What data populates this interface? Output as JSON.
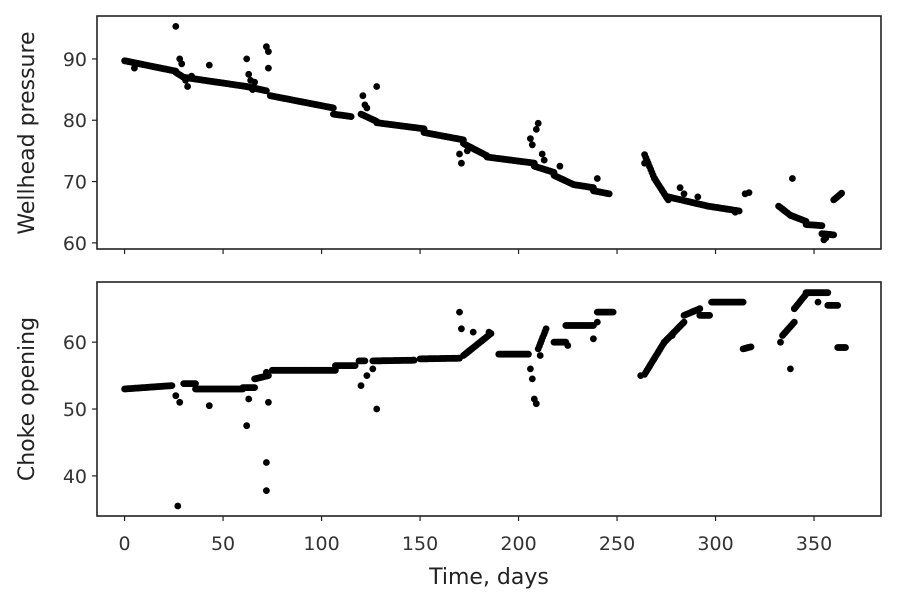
{
  "chart_data": [
    {
      "type": "scatter",
      "title": "",
      "xlabel": "",
      "ylabel": "Wellhead pressure",
      "xlim": [
        -14,
        384
      ],
      "ylim": [
        59,
        97
      ],
      "xticks": [
        0,
        50,
        100,
        150,
        200,
        250,
        300,
        350
      ],
      "xticklabels_visible": false,
      "yticks": [
        60,
        70,
        80,
        90
      ],
      "grid": false,
      "legend": "none",
      "color": "#000000",
      "segments": [
        {
          "from": [
            0,
            89.7
          ],
          "to": [
            26,
            88.0
          ]
        },
        {
          "from": [
            26,
            87.8
          ],
          "to": [
            30,
            87.0
          ]
        },
        {
          "from": [
            30,
            87.0
          ],
          "to": [
            62,
            85.5
          ]
        },
        {
          "from": [
            62,
            85.5
          ],
          "to": [
            72,
            84.8
          ]
        },
        {
          "from": [
            74,
            84.0
          ],
          "to": [
            106,
            82.0
          ]
        },
        {
          "from": [
            106,
            81.0
          ],
          "to": [
            115,
            80.6
          ]
        },
        {
          "from": [
            120,
            81.0
          ],
          "to": [
            128,
            79.8
          ]
        },
        {
          "from": [
            128,
            79.6
          ],
          "to": [
            152,
            78.6
          ]
        },
        {
          "from": [
            152,
            78.0
          ],
          "to": [
            172,
            76.8
          ]
        },
        {
          "from": [
            172,
            76.2
          ],
          "to": [
            184,
            74.2
          ]
        },
        {
          "from": [
            184,
            74.0
          ],
          "to": [
            208,
            73.0
          ]
        },
        {
          "from": [
            208,
            72.5
          ],
          "to": [
            218,
            71.5
          ]
        },
        {
          "from": [
            218,
            71.0
          ],
          "to": [
            228,
            69.5
          ]
        },
        {
          "from": [
            228,
            69.5
          ],
          "to": [
            238,
            69.0
          ]
        },
        {
          "from": [
            238,
            68.5
          ],
          "to": [
            246,
            68.0
          ]
        },
        {
          "from": [
            264,
            74.4
          ],
          "to": [
            269,
            70.5
          ]
        },
        {
          "from": [
            269,
            70.5
          ],
          "to": [
            276,
            67.0
          ]
        },
        {
          "from": [
            276,
            67.5
          ],
          "to": [
            296,
            66.0
          ]
        },
        {
          "from": [
            296,
            66.0
          ],
          "to": [
            312,
            65.2
          ]
        },
        {
          "from": [
            332,
            66.0
          ],
          "to": [
            338,
            64.5
          ]
        },
        {
          "from": [
            338,
            64.5
          ],
          "to": [
            346,
            63.5
          ]
        },
        {
          "from": [
            346,
            63.0
          ],
          "to": [
            354,
            62.8
          ]
        },
        {
          "from": [
            354,
            61.5
          ],
          "to": [
            360,
            61.3
          ]
        },
        {
          "from": [
            360,
            67.0
          ],
          "to": [
            364,
            68.1
          ]
        }
      ],
      "points": [
        [
          26,
          95.3
        ],
        [
          28,
          90.0
        ],
        [
          29,
          89.2
        ],
        [
          31,
          86.5
        ],
        [
          32,
          85.5
        ],
        [
          34,
          87.2
        ],
        [
          43,
          89.0
        ],
        [
          5,
          88.5
        ],
        [
          62,
          90.0
        ],
        [
          63,
          87.5
        ],
        [
          64,
          86.5
        ],
        [
          65,
          85.0
        ],
        [
          66,
          86.2
        ],
        [
          72,
          92.0
        ],
        [
          73,
          91.2
        ],
        [
          73,
          88.5
        ],
        [
          121,
          84.0
        ],
        [
          122,
          82.5
        ],
        [
          123,
          82.0
        ],
        [
          128,
          85.5
        ],
        [
          170,
          74.5
        ],
        [
          171,
          73.0
        ],
        [
          174,
          75.0
        ],
        [
          206,
          77.0
        ],
        [
          207,
          76.0
        ],
        [
          209,
          78.5
        ],
        [
          210,
          79.5
        ],
        [
          212,
          74.5
        ],
        [
          213,
          73.5
        ],
        [
          221,
          72.5
        ],
        [
          237,
          69.0
        ],
        [
          240,
          70.5
        ],
        [
          264,
          73.0
        ],
        [
          275,
          67.5
        ],
        [
          282,
          69.0
        ],
        [
          284,
          68.0
        ],
        [
          291,
          67.5
        ],
        [
          310,
          65.0
        ],
        [
          315,
          68.0
        ],
        [
          317,
          68.2
        ],
        [
          339,
          70.5
        ],
        [
          355,
          60.5
        ],
        [
          356,
          60.8
        ]
      ]
    },
    {
      "type": "scatter",
      "title": "",
      "xlabel": "Time, days",
      "ylabel": "Choke opening",
      "xlim": [
        -14,
        384
      ],
      "ylim": [
        34,
        69
      ],
      "xticks": [
        0,
        50,
        100,
        150,
        200,
        250,
        300,
        350
      ],
      "xticklabels": [
        "0",
        "50",
        "100",
        "150",
        "200",
        "250",
        "300",
        "350"
      ],
      "yticks": [
        40,
        50,
        60
      ],
      "grid": false,
      "legend": "none",
      "color": "#000000",
      "segments": [
        {
          "from": [
            0,
            53.0
          ],
          "to": [
            24,
            53.5
          ]
        },
        {
          "from": [
            30,
            53.8
          ],
          "to": [
            36,
            53.8
          ]
        },
        {
          "from": [
            36,
            53.0
          ],
          "to": [
            60,
            53.0
          ]
        },
        {
          "from": [
            60,
            53.2
          ],
          "to": [
            66,
            53.2
          ]
        },
        {
          "from": [
            66,
            54.5
          ],
          "to": [
            73,
            55.0
          ]
        },
        {
          "from": [
            75,
            55.8
          ],
          "to": [
            107,
            55.8
          ]
        },
        {
          "from": [
            107,
            56.5
          ],
          "to": [
            117,
            56.5
          ]
        },
        {
          "from": [
            119,
            57.2
          ],
          "to": [
            122,
            57.2
          ]
        },
        {
          "from": [
            126,
            57.2
          ],
          "to": [
            147,
            57.3
          ]
        },
        {
          "from": [
            150,
            57.5
          ],
          "to": [
            170,
            57.6
          ]
        },
        {
          "from": [
            172,
            58.0
          ],
          "to": [
            186,
            61.3
          ]
        },
        {
          "from": [
            190,
            58.2
          ],
          "to": [
            205,
            58.2
          ]
        },
        {
          "from": [
            210,
            59.0
          ],
          "to": [
            214,
            62.0
          ]
        },
        {
          "from": [
            218,
            60.0
          ],
          "to": [
            224,
            60.0
          ]
        },
        {
          "from": [
            224,
            62.5
          ],
          "to": [
            238,
            62.5
          ]
        },
        {
          "from": [
            240,
            64.5
          ],
          "to": [
            248,
            64.5
          ]
        },
        {
          "from": [
            264,
            55.2
          ],
          "to": [
            274,
            60.0
          ]
        },
        {
          "from": [
            274,
            60.0
          ],
          "to": [
            284,
            63.0
          ]
        },
        {
          "from": [
            284,
            64.0
          ],
          "to": [
            292,
            65.0
          ]
        },
        {
          "from": [
            292,
            64.0
          ],
          "to": [
            297,
            64.0
          ]
        },
        {
          "from": [
            298,
            66.0
          ],
          "to": [
            314,
            66.0
          ]
        },
        {
          "from": [
            314,
            59.0
          ],
          "to": [
            318,
            59.3
          ]
        },
        {
          "from": [
            334,
            61.0
          ],
          "to": [
            340,
            63.0
          ]
        },
        {
          "from": [
            340,
            65.0
          ],
          "to": [
            346,
            67.2
          ]
        },
        {
          "from": [
            346,
            67.4
          ],
          "to": [
            357,
            67.4
          ]
        },
        {
          "from": [
            357,
            65.5
          ],
          "to": [
            362,
            65.5
          ]
        },
        {
          "from": [
            362,
            59.2
          ],
          "to": [
            366,
            59.2
          ]
        }
      ],
      "points": [
        [
          27,
          35.5
        ],
        [
          26,
          52.0
        ],
        [
          28,
          51.0
        ],
        [
          43,
          50.5
        ],
        [
          62,
          47.5
        ],
        [
          63,
          51.5
        ],
        [
          72,
          42.0
        ],
        [
          72,
          37.8
        ],
        [
          73,
          51.0
        ],
        [
          72,
          55.5
        ],
        [
          120,
          53.5
        ],
        [
          123,
          55.0
        ],
        [
          126,
          56.0
        ],
        [
          128,
          50.0
        ],
        [
          170,
          64.5
        ],
        [
          171,
          62.0
        ],
        [
          177,
          61.5
        ],
        [
          185,
          61.5
        ],
        [
          206,
          56.0
        ],
        [
          207,
          54.5
        ],
        [
          208,
          51.5
        ],
        [
          209,
          50.8
        ],
        [
          211,
          58.0
        ],
        [
          225,
          59.5
        ],
        [
          238,
          60.5
        ],
        [
          240,
          63.0
        ],
        [
          262,
          55.0
        ],
        [
          278,
          61.0
        ],
        [
          333,
          60.0
        ],
        [
          338,
          56.0
        ],
        [
          352,
          66.0
        ]
      ]
    }
  ]
}
